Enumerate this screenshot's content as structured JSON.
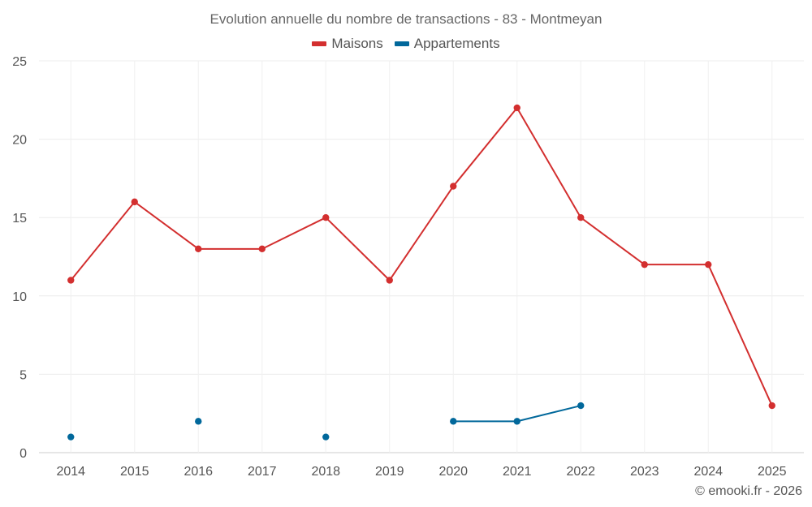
{
  "chart_data": {
    "type": "line",
    "title": "Evolution annuelle du nombre de transactions - 83 - Montmeyan",
    "xlabel": "",
    "ylabel": "",
    "categories": [
      "2014",
      "2015",
      "2016",
      "2017",
      "2018",
      "2019",
      "2020",
      "2021",
      "2022",
      "2023",
      "2024",
      "2025"
    ],
    "ylim": [
      0,
      25
    ],
    "yticks": [
      0,
      5,
      10,
      15,
      20,
      25
    ],
    "grid": true,
    "legend_position": "top-center",
    "series": [
      {
        "name": "Maisons",
        "color": "#d32f2f",
        "values": [
          11,
          16,
          13,
          13,
          15,
          11,
          17,
          22,
          15,
          12,
          12,
          3
        ]
      },
      {
        "name": "Appartements",
        "color": "#01689b",
        "values": [
          1,
          null,
          2,
          null,
          1,
          null,
          2,
          2,
          3,
          null,
          null,
          null
        ]
      }
    ]
  },
  "credits": "© emooki.fr - 2026"
}
